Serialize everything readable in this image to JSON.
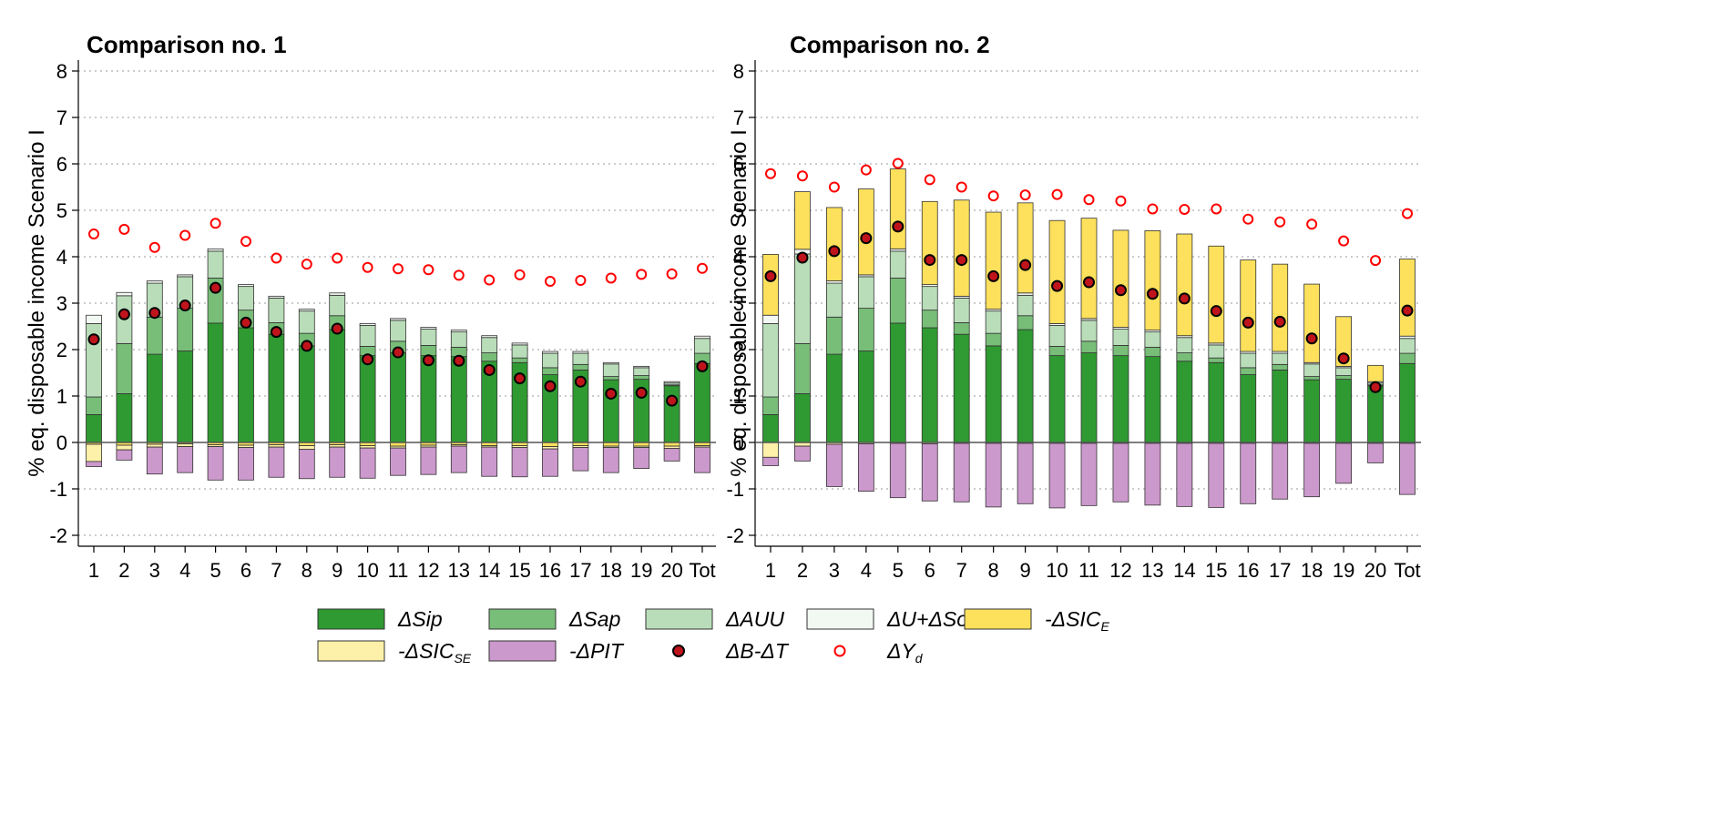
{
  "chart_data": [
    {
      "type": "bar",
      "title": "Comparison no. 1",
      "xlabel": "",
      "ylabel": "% eq. disposable income Scenario I",
      "ylim": [
        -2.2,
        8.2
      ],
      "yticks": [
        -2,
        -1,
        0,
        1,
        2,
        3,
        4,
        5,
        6,
        7,
        8
      ],
      "grid": true,
      "stacked": true,
      "categories": [
        "1",
        "2",
        "3",
        "4",
        "5",
        "6",
        "7",
        "8",
        "9",
        "10",
        "11",
        "12",
        "13",
        "14",
        "15",
        "16",
        "17",
        "18",
        "19",
        "20",
        "Tot"
      ],
      "series": [
        {
          "name": "ΔSip",
          "color": "#2f9a32",
          "values": [
            0.6,
            1.05,
            1.9,
            1.97,
            2.57,
            2.47,
            2.33,
            2.08,
            2.43,
            1.87,
            1.93,
            1.87,
            1.85,
            1.75,
            1.72,
            1.46,
            1.56,
            1.35,
            1.36,
            1.22,
            1.7
          ]
        },
        {
          "name": "ΔSap",
          "color": "#78bd78",
          "values": [
            0.38,
            1.08,
            0.8,
            0.92,
            0.97,
            0.38,
            0.25,
            0.27,
            0.3,
            0.2,
            0.25,
            0.22,
            0.2,
            0.18,
            0.1,
            0.15,
            0.12,
            0.07,
            0.08,
            0.02,
            0.22
          ]
        },
        {
          "name": "ΔAUU",
          "color": "#b9ddb9",
          "values": [
            1.58,
            1.03,
            0.73,
            0.68,
            0.58,
            0.51,
            0.53,
            0.48,
            0.44,
            0.45,
            0.45,
            0.35,
            0.33,
            0.33,
            0.28,
            0.31,
            0.24,
            0.27,
            0.17,
            0.04,
            0.32
          ]
        },
        {
          "name": "ΔU+ΔSot",
          "color": "#f2f8f2",
          "values": [
            0.18,
            0.07,
            0.05,
            0.04,
            0.05,
            0.04,
            0.04,
            0.04,
            0.05,
            0.04,
            0.04,
            0.04,
            0.04,
            0.04,
            0.04,
            0.04,
            0.04,
            0.03,
            0.03,
            0.03,
            0.05
          ]
        },
        {
          "name": "-ΔSICE",
          "color": "#fde05c",
          "values": [
            -0.04,
            -0.06,
            -0.04,
            -0.03,
            -0.05,
            -0.06,
            -0.05,
            -0.07,
            -0.05,
            -0.07,
            -0.08,
            -0.06,
            -0.05,
            -0.07,
            -0.07,
            -0.09,
            -0.07,
            -0.08,
            -0.08,
            -0.08,
            -0.07
          ]
        },
        {
          "name": "-ΔSICSE",
          "color": "#fdf0a8",
          "values": [
            -0.37,
            -0.1,
            -0.06,
            -0.06,
            -0.04,
            -0.05,
            -0.05,
            -0.08,
            -0.05,
            -0.05,
            -0.04,
            -0.04,
            -0.03,
            -0.03,
            -0.04,
            -0.05,
            -0.04,
            -0.03,
            -0.03,
            -0.05,
            -0.03
          ]
        },
        {
          "name": "-ΔPIT",
          "color": "#cc99cc",
          "values": [
            -0.11,
            -0.22,
            -0.58,
            -0.56,
            -0.72,
            -0.7,
            -0.65,
            -0.63,
            -0.65,
            -0.65,
            -0.59,
            -0.59,
            -0.57,
            -0.63,
            -0.63,
            -0.59,
            -0.5,
            -0.54,
            -0.45,
            -0.27,
            -0.55
          ]
        }
      ],
      "markers": [
        {
          "name": "ΔB-ΔT",
          "color": "#c0141c",
          "values": [
            2.22,
            2.76,
            2.79,
            2.95,
            3.33,
            2.58,
            2.38,
            2.08,
            2.45,
            1.79,
            1.94,
            1.77,
            1.76,
            1.56,
            1.38,
            1.21,
            1.31,
            1.05,
            1.07,
            0.9,
            1.64
          ]
        },
        {
          "name": "ΔYd",
          "color": "#ff0000",
          "values": [
            4.49,
            4.59,
            4.2,
            4.46,
            4.72,
            4.33,
            3.97,
            3.84,
            3.97,
            3.77,
            3.74,
            3.72,
            3.6,
            3.5,
            3.61,
            3.47,
            3.49,
            3.54,
            3.62,
            3.63,
            3.75
          ]
        }
      ]
    },
    {
      "type": "bar",
      "title": "Comparison no. 2",
      "xlabel": "",
      "ylabel": "% eq. disposable income Scenario I",
      "ylim": [
        -2.2,
        8.2
      ],
      "yticks": [
        -2,
        -1,
        0,
        1,
        2,
        3,
        4,
        5,
        6,
        7,
        8
      ],
      "grid": true,
      "stacked": true,
      "categories": [
        "1",
        "2",
        "3",
        "4",
        "5",
        "6",
        "7",
        "8",
        "9",
        "10",
        "11",
        "12",
        "13",
        "14",
        "15",
        "16",
        "17",
        "18",
        "19",
        "20",
        "Tot"
      ],
      "series": [
        {
          "name": "ΔSip",
          "color": "#2f9a32",
          "values": [
            0.6,
            1.05,
            1.9,
            1.97,
            2.57,
            2.47,
            2.33,
            2.08,
            2.43,
            1.87,
            1.93,
            1.87,
            1.85,
            1.75,
            1.72,
            1.46,
            1.56,
            1.35,
            1.36,
            1.22,
            1.7
          ]
        },
        {
          "name": "ΔSap",
          "color": "#78bd78",
          "values": [
            0.38,
            1.08,
            0.8,
            0.92,
            0.97,
            0.38,
            0.25,
            0.27,
            0.3,
            0.2,
            0.25,
            0.22,
            0.2,
            0.18,
            0.1,
            0.15,
            0.12,
            0.07,
            0.08,
            0.02,
            0.22
          ]
        },
        {
          "name": "ΔAUU",
          "color": "#b9ddb9",
          "values": [
            1.58,
            1.93,
            0.73,
            0.68,
            0.58,
            0.51,
            0.53,
            0.48,
            0.44,
            0.45,
            0.45,
            0.35,
            0.33,
            0.33,
            0.28,
            0.31,
            0.24,
            0.27,
            0.17,
            0.04,
            0.32
          ]
        },
        {
          "name": "ΔU+ΔSot",
          "color": "#f2f8f2",
          "values": [
            0.18,
            0.1,
            0.05,
            0.04,
            0.05,
            0.04,
            0.04,
            0.04,
            0.05,
            0.04,
            0.04,
            0.04,
            0.04,
            0.04,
            0.04,
            0.04,
            0.04,
            0.03,
            0.03,
            0.03,
            0.05
          ]
        },
        {
          "name": "-ΔSICE",
          "color": "#fde05c",
          "values": [
            1.31,
            1.24,
            1.58,
            1.85,
            1.72,
            1.79,
            2.07,
            2.09,
            1.94,
            2.22,
            2.16,
            2.09,
            2.14,
            2.19,
            2.09,
            1.97,
            1.88,
            1.69,
            1.07,
            0.35,
            1.66
          ]
        },
        {
          "name": "-ΔSICSE",
          "color": "#fdf0a8",
          "values": [
            -0.32,
            -0.08,
            -0.04,
            -0.03,
            -0.02,
            -0.03,
            -0.02,
            -0.02,
            -0.02,
            -0.02,
            -0.02,
            -0.02,
            -0.02,
            -0.02,
            -0.02,
            -0.02,
            -0.02,
            -0.02,
            -0.02,
            -0.02,
            -0.02
          ]
        },
        {
          "name": "-ΔPIT",
          "color": "#cc99cc",
          "values": [
            -0.18,
            -0.32,
            -0.91,
            -1.02,
            -1.17,
            -1.23,
            -1.26,
            -1.37,
            -1.3,
            -1.39,
            -1.34,
            -1.26,
            -1.33,
            -1.36,
            -1.38,
            -1.3,
            -1.2,
            -1.15,
            -0.86,
            -0.42,
            -1.1
          ]
        }
      ],
      "markers": [
        {
          "name": "ΔB-ΔT",
          "color": "#c0141c",
          "values": [
            3.58,
            3.98,
            4.12,
            4.4,
            4.65,
            3.93,
            3.93,
            3.58,
            3.82,
            3.37,
            3.45,
            3.28,
            3.2,
            3.1,
            2.83,
            2.58,
            2.6,
            2.24,
            1.81,
            1.19,
            2.84
          ]
        },
        {
          "name": "ΔYd",
          "color": "#ff0000",
          "values": [
            5.79,
            5.74,
            5.5,
            5.87,
            6.01,
            5.66,
            5.5,
            5.31,
            5.33,
            5.34,
            5.23,
            5.2,
            5.03,
            5.02,
            5.03,
            4.81,
            4.75,
            4.7,
            4.34,
            3.92,
            4.93
          ]
        }
      ]
    }
  ],
  "legend": [
    {
      "main": "ΔSip",
      "sub": "",
      "kind": "box",
      "color": "#2f9a32"
    },
    {
      "main": "ΔSap",
      "sub": "",
      "kind": "box",
      "color": "#78bd78"
    },
    {
      "main": "ΔAUU",
      "sub": "",
      "kind": "box",
      "color": "#b9ddb9"
    },
    {
      "main": "ΔU+ΔSot",
      "sub": "",
      "kind": "box",
      "color": "#f2f8f2"
    },
    {
      "main": "-ΔSIC",
      "sub": "E",
      "kind": "box",
      "color": "#fde05c"
    },
    {
      "main": "-ΔSIC",
      "sub": "SE",
      "kind": "box",
      "color": "#fdf0a8"
    },
    {
      "main": "-ΔPIT",
      "sub": "",
      "kind": "box",
      "color": "#cc99cc"
    },
    {
      "main": "ΔB-ΔT",
      "sub": "",
      "kind": "dot",
      "color": "#c0141c"
    },
    {
      "main": "ΔY",
      "sub": "d",
      "kind": "ring",
      "color": "#ff0000"
    }
  ]
}
